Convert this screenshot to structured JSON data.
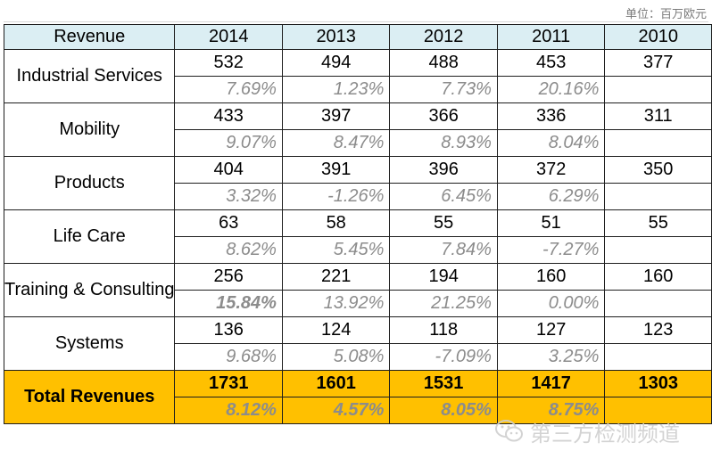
{
  "unit_label": "单位：百万欧元",
  "header": {
    "label": "Revenue",
    "years": [
      "2014",
      "2013",
      "2012",
      "2011",
      "2010"
    ]
  },
  "rows": [
    {
      "label": "Industrial Services",
      "values": [
        "532",
        "494",
        "488",
        "453",
        "377"
      ],
      "growth": [
        "7.69%",
        "1.23%",
        "7.73%",
        "20.16%",
        ""
      ]
    },
    {
      "label": "Mobility",
      "values": [
        "433",
        "397",
        "366",
        "336",
        "311"
      ],
      "growth": [
        "9.07%",
        "8.47%",
        "8.93%",
        "8.04%",
        ""
      ]
    },
    {
      "label": "Products",
      "values": [
        "404",
        "391",
        "396",
        "372",
        "350"
      ],
      "growth": [
        "3.32%",
        "-1.26%",
        "6.45%",
        "6.29%",
        ""
      ]
    },
    {
      "label": "Life Care",
      "values": [
        "63",
        "58",
        "55",
        "51",
        "55"
      ],
      "growth": [
        "8.62%",
        "5.45%",
        "7.84%",
        "-7.27%",
        ""
      ]
    },
    {
      "label": "Training & Consulting",
      "values": [
        "256",
        "221",
        "194",
        "160",
        "160"
      ],
      "growth": [
        "15.84%",
        "13.92%",
        "21.25%",
        "0.00%",
        ""
      ]
    },
    {
      "label": "Systems",
      "values": [
        "136",
        "124",
        "118",
        "127",
        "123"
      ],
      "growth": [
        "9.68%",
        "5.08%",
        "-7.09%",
        "3.25%",
        ""
      ]
    }
  ],
  "total": {
    "label": "Total Revenues",
    "values": [
      "1731",
      "1601",
      "1531",
      "1417",
      "1303"
    ],
    "growth": [
      "8.12%",
      "4.57%",
      "8.05%",
      "8.75%",
      ""
    ]
  },
  "watermark": {
    "text": "第三方检测频道",
    "icon": "wechat-icon"
  },
  "colors": {
    "header_bg": "#dbeef3",
    "total_bg": "#ffc000",
    "growth_text": "#8c8c8c"
  }
}
